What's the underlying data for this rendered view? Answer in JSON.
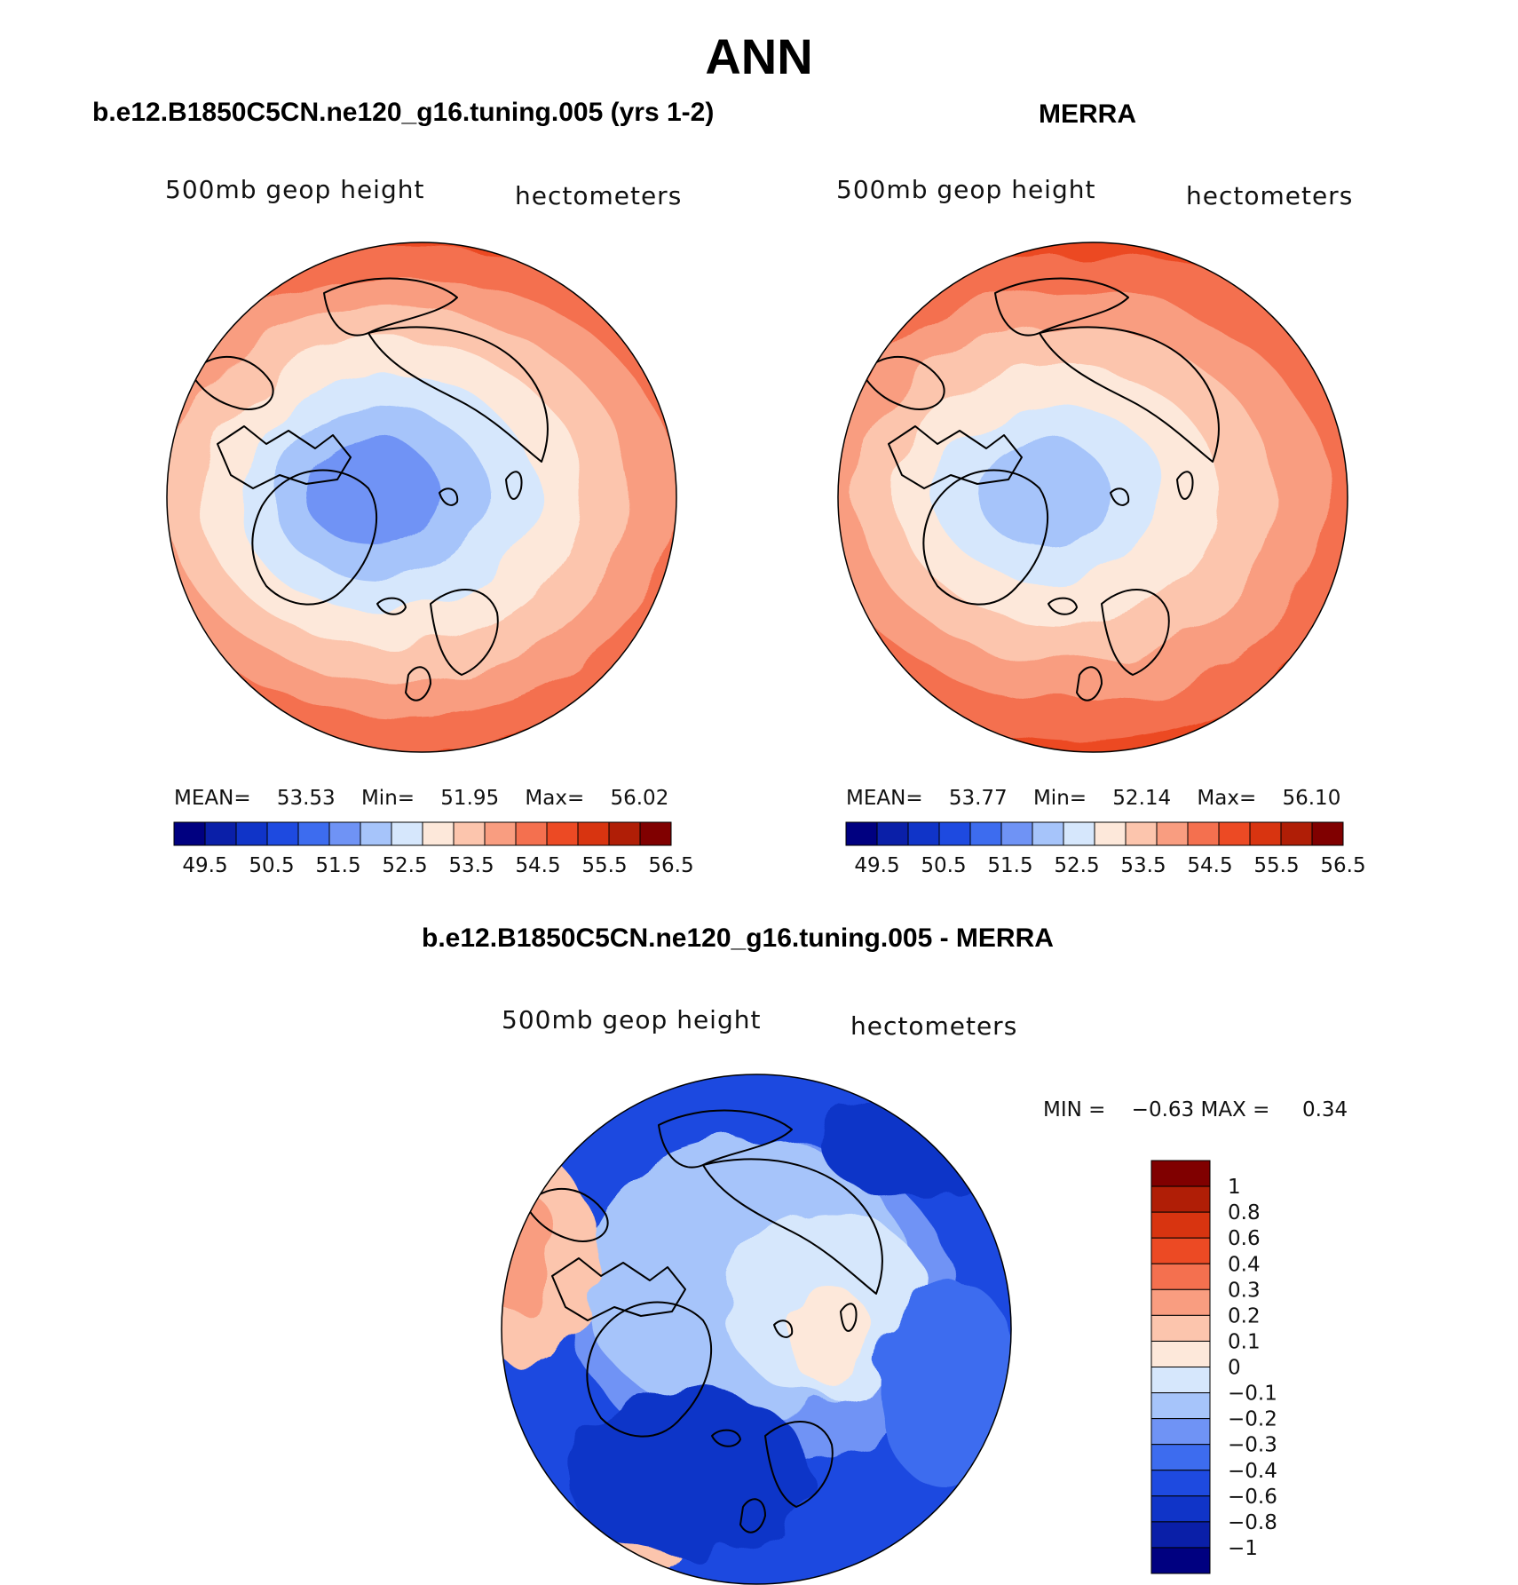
{
  "figure": {
    "title": "ANN",
    "panels": {
      "left": {
        "title": "b.e12.B1850C5CN.ne120_g16.tuning.005 (yrs 1-2)",
        "variable": "500mb geop height",
        "units": "hectometers",
        "stats": {
          "mean_label": "MEAN=",
          "mean": "53.53",
          "min_label": "Min=",
          "min": "51.95",
          "max_label": "Max=",
          "max": "56.02"
        }
      },
      "right": {
        "title": "MERRA",
        "variable": "500mb geop height",
        "units": "hectometers",
        "stats": {
          "mean_label": "MEAN=",
          "mean": "53.77",
          "min_label": "Min=",
          "min": "52.14",
          "max_label": "Max=",
          "max": "56.10"
        }
      },
      "diff": {
        "title": "b.e12.B1850C5CN.ne120_g16.tuning.005 - MERRA",
        "variable": "500mb geop height",
        "units": "hectometers",
        "stats": {
          "min_label": "MIN =",
          "min": "−0.63",
          "max_label": "MAX =",
          "max": "0.34"
        }
      }
    }
  },
  "chart_data": [
    {
      "type": "heatmap",
      "title": "b.e12.B1850C5CN.ne120_g16.tuning.005 (yrs 1-2)",
      "subtitle": "500mb geop height",
      "units": "hectometers",
      "projection": "north-polar-stereographic",
      "stats": {
        "mean": 53.53,
        "min": 51.95,
        "max": 56.02
      },
      "levels": [
        49.5,
        50.0,
        50.5,
        51.0,
        51.5,
        52.0,
        52.5,
        53.0,
        53.5,
        54.0,
        54.5,
        55.0,
        55.5,
        56.0,
        56.5
      ],
      "tick_labels": [
        "49.5",
        "50.5",
        "51.5",
        "52.5",
        "53.5",
        "54.5",
        "55.5",
        "56.5"
      ],
      "colormap": [
        "#000080",
        "#0a1fa8",
        "#1034c8",
        "#1e4ae0",
        "#3d6cef",
        "#6f93f5",
        "#a6c4fa",
        "#d6e7fc",
        "#fde8da",
        "#fcc5ad",
        "#f99d80",
        "#f4704f",
        "#ec4a24",
        "#d83410",
        "#b01e06",
        "#800000"
      ],
      "ring_levels": [
        56.0,
        55.5,
        55.0,
        54.5,
        54.0,
        53.5,
        53.0,
        52.5,
        52.0
      ],
      "legend": "bottom"
    },
    {
      "type": "heatmap",
      "title": "MERRA",
      "subtitle": "500mb geop height",
      "units": "hectometers",
      "projection": "north-polar-stereographic",
      "stats": {
        "mean": 53.77,
        "min": 52.14,
        "max": 56.1
      },
      "levels": [
        49.5,
        50.0,
        50.5,
        51.0,
        51.5,
        52.0,
        52.5,
        53.0,
        53.5,
        54.0,
        54.5,
        55.0,
        55.5,
        56.0,
        56.5
      ],
      "tick_labels": [
        "49.5",
        "50.5",
        "51.5",
        "52.5",
        "53.5",
        "54.5",
        "55.5",
        "56.5"
      ],
      "colormap": [
        "#000080",
        "#0a1fa8",
        "#1034c8",
        "#1e4ae0",
        "#3d6cef",
        "#6f93f5",
        "#a6c4fa",
        "#d6e7fc",
        "#fde8da",
        "#fcc5ad",
        "#f99d80",
        "#f4704f",
        "#ec4a24",
        "#d83410",
        "#b01e06",
        "#800000"
      ],
      "ring_levels": [
        56.0,
        55.5,
        55.0,
        54.5,
        54.0,
        53.5,
        53.0,
        52.5
      ],
      "legend": "bottom"
    },
    {
      "type": "heatmap",
      "title": "b.e12.B1850C5CN.ne120_g16.tuning.005 - MERRA",
      "subtitle": "500mb geop height",
      "units": "hectometers",
      "projection": "north-polar-stereographic",
      "stats": {
        "min": -0.63,
        "max": 0.34
      },
      "levels": [
        -1,
        -0.8,
        -0.6,
        -0.4,
        -0.3,
        -0.2,
        -0.1,
        0,
        0.1,
        0.2,
        0.3,
        0.4,
        0.6,
        0.8,
        1
      ],
      "tick_labels": [
        "1",
        "0.8",
        "0.6",
        "0.4",
        "0.3",
        "0.2",
        "0.1",
        "0",
        "−0.1",
        "−0.2",
        "−0.3",
        "−0.4",
        "−0.6",
        "−0.8",
        "−1"
      ],
      "colormap": [
        "#000080",
        "#0a1fa8",
        "#1034c8",
        "#1e4ae0",
        "#3d6cef",
        "#6f93f5",
        "#a6c4fa",
        "#d6e7fc",
        "#fde8da",
        "#fcc5ad",
        "#f99d80",
        "#f4704f",
        "#ec4a24",
        "#d83410",
        "#b01e06",
        "#800000"
      ],
      "legend": "right"
    }
  ]
}
